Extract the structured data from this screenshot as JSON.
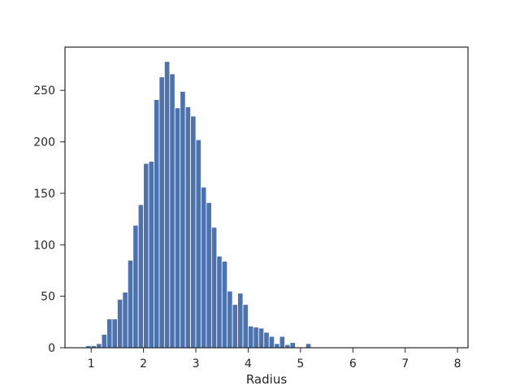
{
  "chart_data": {
    "type": "bar",
    "xlabel": "Radius",
    "ylabel": "",
    "bar_color": "#4c72b0",
    "xlim": [
      0.5,
      8.2
    ],
    "ylim": [
      0,
      292
    ],
    "bin_width": 0.1,
    "x_ticks": [
      1,
      2,
      3,
      4,
      5,
      6,
      7,
      8
    ],
    "y_ticks": [
      0,
      50,
      100,
      150,
      200,
      250
    ],
    "x": [
      0.95,
      1.05,
      1.15,
      1.25,
      1.35,
      1.45,
      1.55,
      1.65,
      1.75,
      1.85,
      1.95,
      2.05,
      2.15,
      2.25,
      2.35,
      2.45,
      2.55,
      2.65,
      2.75,
      2.85,
      2.95,
      3.05,
      3.15,
      3.25,
      3.35,
      3.45,
      3.55,
      3.65,
      3.75,
      3.85,
      3.95,
      4.05,
      4.15,
      4.25,
      4.35,
      4.45,
      4.55,
      4.65,
      4.75,
      4.85,
      4.95,
      5.05,
      5.15,
      5.25,
      5.35,
      5.45,
      5.55
    ],
    "values": [
      2,
      2,
      4,
      13,
      28,
      28,
      47,
      54,
      85,
      119,
      139,
      179,
      181,
      241,
      263,
      278,
      266,
      233,
      249,
      234,
      225,
      202,
      156,
      141,
      117,
      89,
      84,
      55,
      42,
      53,
      42,
      21,
      20,
      19,
      15,
      11,
      4,
      11,
      3,
      5,
      0,
      0,
      4,
      0,
      0,
      0,
      0
    ]
  }
}
